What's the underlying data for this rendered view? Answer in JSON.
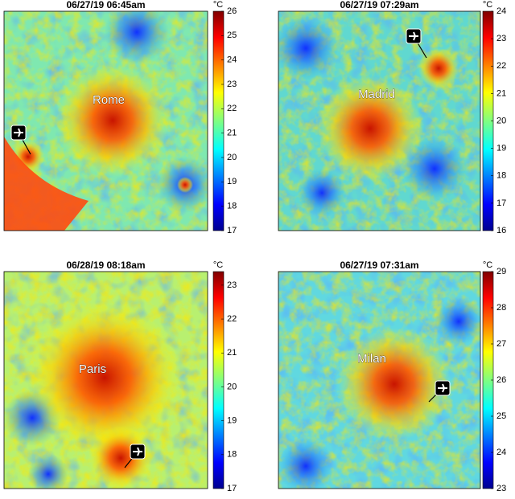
{
  "panels": [
    {
      "title": "06/27/19 06:45am",
      "city": "Rome",
      "unit": "°C",
      "clim": [
        17,
        26
      ],
      "cticks": [
        17,
        18,
        19,
        20,
        21,
        22,
        23,
        24,
        25,
        26
      ]
    },
    {
      "title": "06/27/19 07:29am",
      "city": "Madrid",
      "unit": "°C",
      "clim": [
        16,
        24
      ],
      "cticks": [
        16,
        17,
        18,
        19,
        20,
        21,
        22,
        23,
        24
      ]
    },
    {
      "title": "06/28/19 08:18am",
      "city": "Paris",
      "unit": "°C",
      "clim": [
        17,
        23.4
      ],
      "cticks": [
        17,
        18,
        19,
        20,
        21,
        22,
        23
      ]
    },
    {
      "title": "06/27/19 07:31am",
      "city": "Milan",
      "unit": "°C",
      "clim": [
        23,
        29
      ],
      "cticks": [
        23,
        24,
        25,
        26,
        27,
        28,
        29
      ]
    }
  ]
}
